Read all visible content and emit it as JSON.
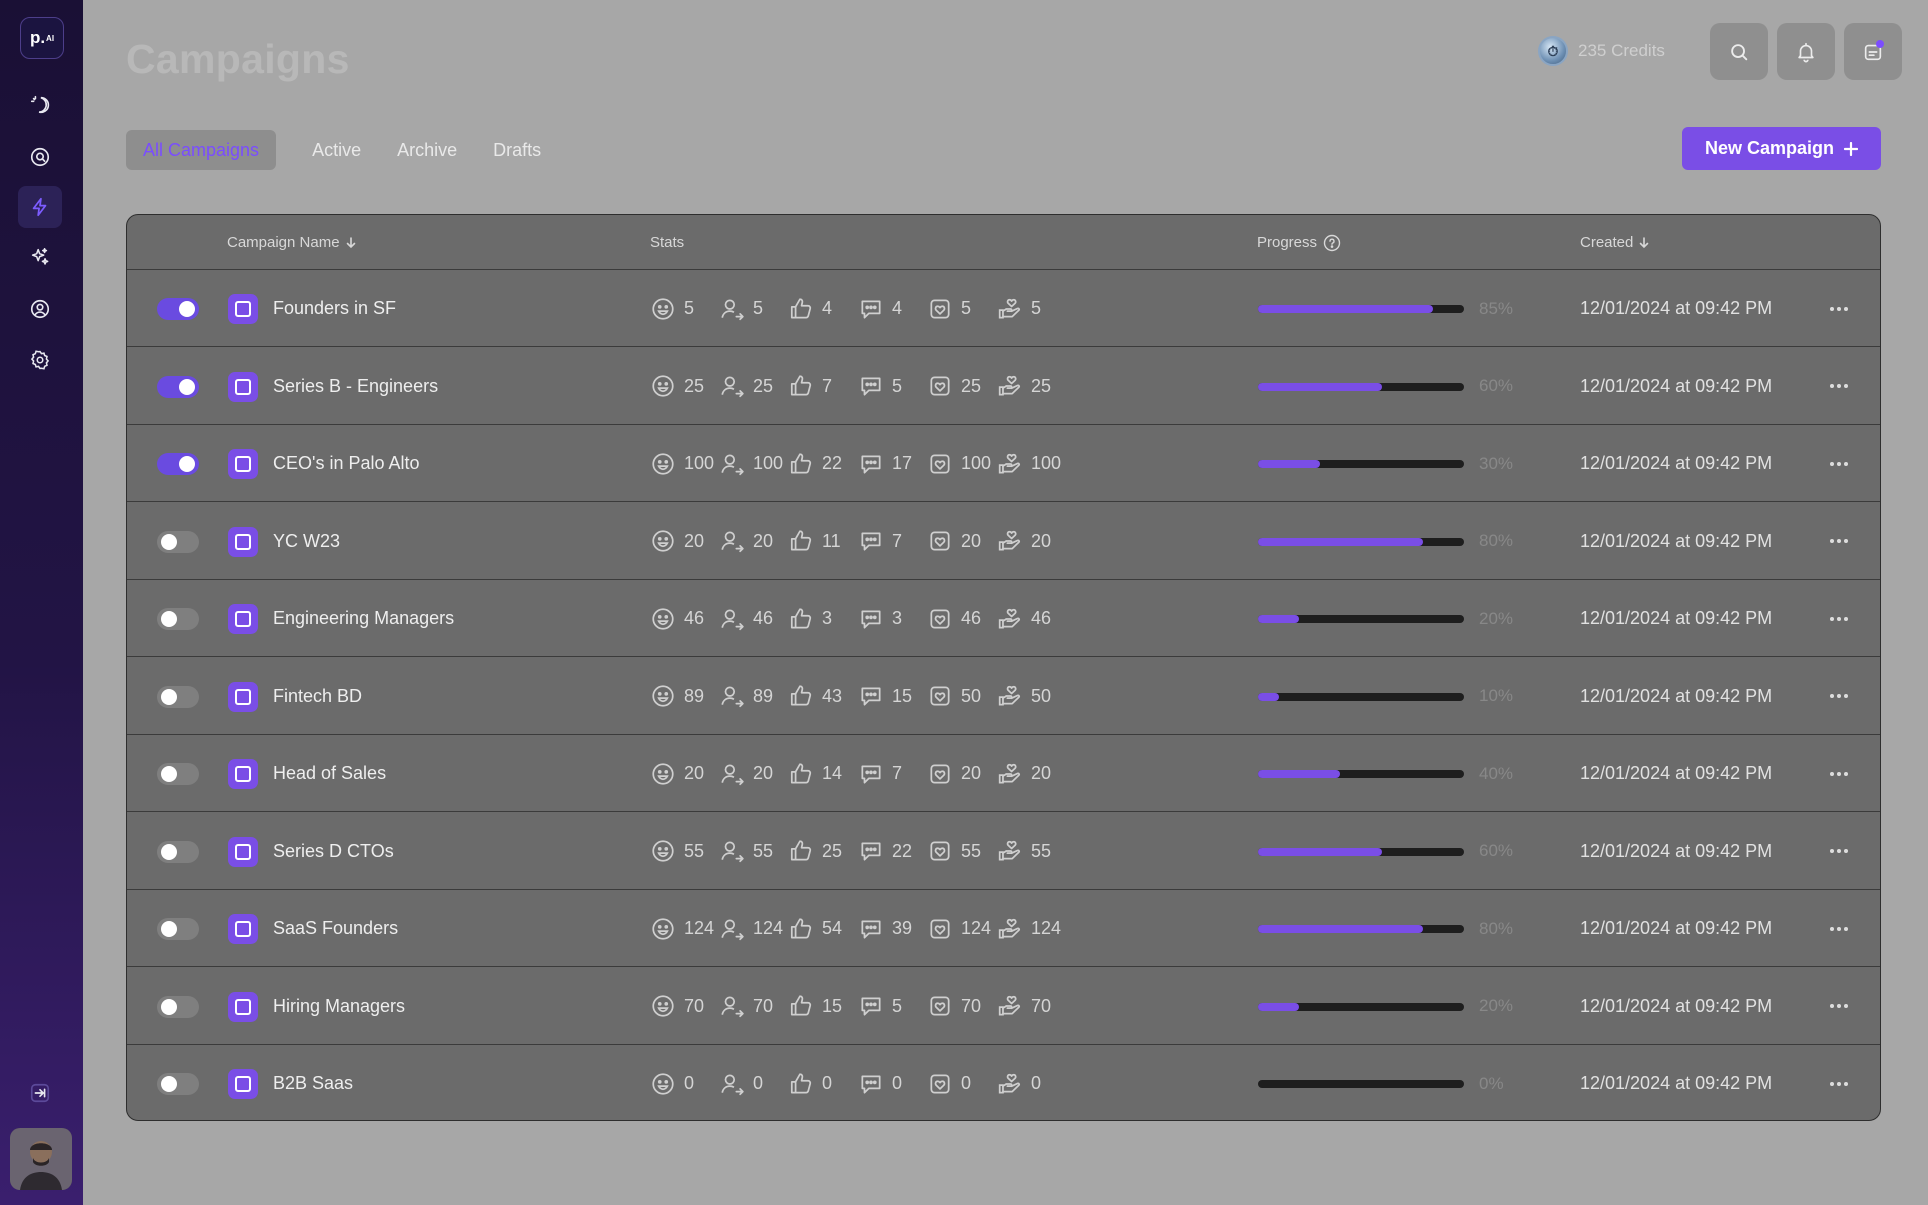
{
  "brand": {
    "logo_text": "p.",
    "logo_sup": "AI",
    "accent": "#7a4ee6"
  },
  "sidebar": {
    "items": [
      {
        "name": "theme-icon"
      },
      {
        "name": "discover-icon"
      },
      {
        "name": "campaigns-icon"
      },
      {
        "name": "ai-icon"
      },
      {
        "name": "profile-icon"
      },
      {
        "name": "settings-icon"
      }
    ],
    "collapse": "collapse-icon"
  },
  "header": {
    "title": "Campaigns",
    "credits": "235 Credits"
  },
  "tabs": [
    "All Campaigns",
    "Active",
    "Archive",
    "Drafts"
  ],
  "new_campaign": "New Campaign",
  "table": {
    "columns": {
      "name": "Campaign Name",
      "stats": "Stats",
      "progress": "Progress",
      "created": "Created"
    },
    "rows": [
      {
        "active": true,
        "name": "Founders in SF",
        "stats": [
          "5",
          "5",
          "4",
          "4",
          "5",
          "5"
        ],
        "progress": 0.85,
        "pct": "85%",
        "created": "12/01/2024 at 09:42 PM"
      },
      {
        "active": true,
        "name": "Series B - Engineers",
        "stats": [
          "25",
          "25",
          "7",
          "5",
          "25",
          "25"
        ],
        "progress": 0.6,
        "pct": "60%",
        "created": "12/01/2024 at 09:42 PM"
      },
      {
        "active": true,
        "name": "CEO's in Palo Alto",
        "stats": [
          "100",
          "100",
          "22",
          "17",
          "100",
          "100"
        ],
        "progress": 0.3,
        "pct": "30%",
        "created": "12/01/2024 at 09:42 PM"
      },
      {
        "active": false,
        "name": "YC W23",
        "stats": [
          "20",
          "20",
          "11",
          "7",
          "20",
          "20"
        ],
        "progress": 0.8,
        "pct": "80%",
        "created": "12/01/2024 at 09:42 PM"
      },
      {
        "active": false,
        "name": "Engineering Managers",
        "stats": [
          "46",
          "46",
          "3",
          "3",
          "46",
          "46"
        ],
        "progress": 0.2,
        "pct": "20%",
        "created": "12/01/2024 at 09:42 PM"
      },
      {
        "active": false,
        "name": "Fintech BD",
        "stats": [
          "89",
          "89",
          "43",
          "15",
          "50",
          "50"
        ],
        "progress": 0.1,
        "pct": "10%",
        "created": "12/01/2024 at 09:42 PM"
      },
      {
        "active": false,
        "name": "Head of Sales",
        "stats": [
          "20",
          "20",
          "14",
          "7",
          "20",
          "20"
        ],
        "progress": 0.4,
        "pct": "40%",
        "created": "12/01/2024 at 09:42 PM"
      },
      {
        "active": false,
        "name": "Series D CTOs",
        "stats": [
          "55",
          "55",
          "25",
          "22",
          "55",
          "55"
        ],
        "progress": 0.6,
        "pct": "60%",
        "created": "12/01/2024 at 09:42 PM"
      },
      {
        "active": false,
        "name": "SaaS Founders",
        "stats": [
          "124",
          "124",
          "54",
          "39",
          "124",
          "124"
        ],
        "progress": 0.8,
        "pct": "80%",
        "created": "12/01/2024 at 09:42 PM"
      },
      {
        "active": false,
        "name": "Hiring Managers",
        "stats": [
          "70",
          "70",
          "15",
          "5",
          "70",
          "70"
        ],
        "progress": 0.2,
        "pct": "20%",
        "created": "12/01/2024 at 09:42 PM"
      },
      {
        "active": false,
        "name": "B2B Saas",
        "stats": [
          "0",
          "0",
          "0",
          "0",
          "0",
          "0"
        ],
        "progress": 0.0,
        "pct": "0%",
        "created": "12/01/2024 at 09:42 PM"
      }
    ],
    "stat_icons": [
      "smile-icon",
      "user-arrow-icon",
      "thumbs-up-icon",
      "message-icon",
      "heart-shield-icon",
      "hand-heart-icon"
    ]
  }
}
